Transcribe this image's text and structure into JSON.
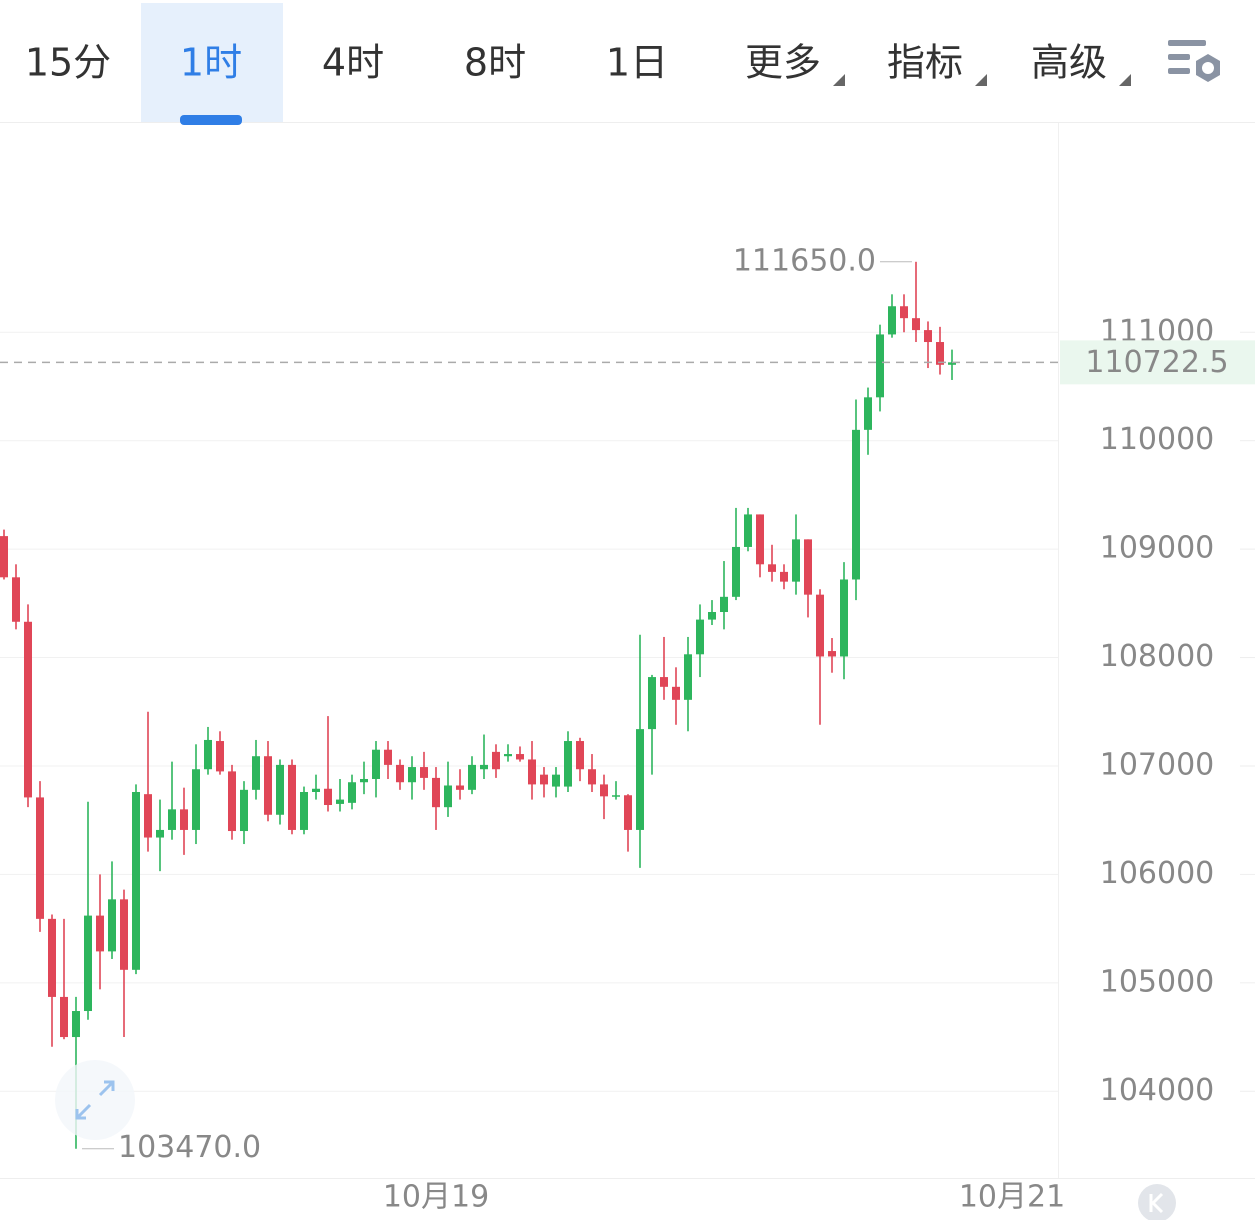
{
  "tabs": {
    "items": [
      "15分",
      "1时",
      "4时",
      "8时",
      "1日",
      "更多",
      "指标",
      "高级"
    ],
    "active": 1
  },
  "chart_data": {
    "type": "candlestick",
    "up_color": "#2db55d",
    "down_color": "#e04657",
    "ylim": [
      103200,
      112930
    ],
    "yticks": [
      104000,
      105000,
      106000,
      107000,
      108000,
      109000,
      110000,
      111000
    ],
    "grid": true,
    "xticks": [
      {
        "value": 36,
        "label": "10月19"
      },
      {
        "value": 84,
        "label": "10月21"
      }
    ],
    "high_label": {
      "value": 111650,
      "label": "111650.0"
    },
    "low_label": {
      "value": 103470,
      "label": "103470.0"
    },
    "last_price": {
      "value": 110722.5,
      "label": "110722.5"
    },
    "ohlc": [
      [
        109120,
        109180,
        108720,
        108740
      ],
      [
        108740,
        108860,
        108260,
        108330
      ],
      [
        108330,
        108490,
        106620,
        106710
      ],
      [
        106710,
        106860,
        105470,
        105590
      ],
      [
        105590,
        105630,
        104410,
        104870
      ],
      [
        104870,
        105590,
        104480,
        104500
      ],
      [
        104500,
        104870,
        103470,
        104740
      ],
      [
        104740,
        106670,
        104660,
        105620
      ],
      [
        105620,
        106000,
        104940,
        105290
      ],
      [
        105290,
        106120,
        105220,
        105770
      ],
      [
        105770,
        105860,
        104500,
        105120
      ],
      [
        105120,
        106830,
        105080,
        106760
      ],
      [
        106740,
        107500,
        106210,
        106340
      ],
      [
        106340,
        106690,
        106030,
        106410
      ],
      [
        106410,
        107040,
        106320,
        106600
      ],
      [
        106600,
        106800,
        106180,
        106410
      ],
      [
        106410,
        107200,
        106280,
        106970
      ],
      [
        106970,
        107360,
        106920,
        107240
      ],
      [
        107230,
        107320,
        106920,
        106950
      ],
      [
        106950,
        107010,
        106320,
        106400
      ],
      [
        106400,
        106860,
        106280,
        106780
      ],
      [
        106780,
        107240,
        106690,
        107090
      ],
      [
        107090,
        107230,
        106490,
        106550
      ],
      [
        106550,
        107060,
        106460,
        107010
      ],
      [
        107010,
        107060,
        106370,
        106410
      ],
      [
        106410,
        106810,
        106370,
        106760
      ],
      [
        106760,
        106920,
        106690,
        106790
      ],
      [
        106790,
        107460,
        106580,
        106640
      ],
      [
        106650,
        106880,
        106580,
        106690
      ],
      [
        106660,
        106920,
        106600,
        106850
      ],
      [
        106850,
        107040,
        106740,
        106880
      ],
      [
        106880,
        107230,
        106710,
        107150
      ],
      [
        107150,
        107230,
        106880,
        107010
      ],
      [
        107010,
        107060,
        106780,
        106850
      ],
      [
        106850,
        107090,
        106690,
        106990
      ],
      [
        106990,
        107130,
        106780,
        106890
      ],
      [
        106890,
        106990,
        106410,
        106620
      ],
      [
        106620,
        107040,
        106530,
        106820
      ],
      [
        106820,
        106970,
        106690,
        106780
      ],
      [
        106780,
        107090,
        106740,
        107010
      ],
      [
        106970,
        107290,
        106880,
        107010
      ],
      [
        107130,
        107200,
        106890,
        106970
      ],
      [
        107090,
        107200,
        107040,
        107110
      ],
      [
        107110,
        107180,
        107040,
        107060
      ],
      [
        107060,
        107230,
        106690,
        106830
      ],
      [
        106920,
        106990,
        106710,
        106830
      ],
      [
        106810,
        106990,
        106710,
        106920
      ],
      [
        106810,
        107320,
        106760,
        107230
      ],
      [
        107230,
        107260,
        106860,
        106970
      ],
      [
        106970,
        107110,
        106760,
        106830
      ],
      [
        106830,
        106920,
        106510,
        106720
      ],
      [
        106720,
        106860,
        106690,
        106730
      ],
      [
        106730,
        106740,
        106210,
        106410
      ],
      [
        106410,
        108210,
        106060,
        107340
      ],
      [
        107340,
        107840,
        106920,
        107820
      ],
      [
        107820,
        108190,
        107610,
        107730
      ],
      [
        107730,
        107910,
        107380,
        107610
      ],
      [
        107610,
        108190,
        107320,
        108030
      ],
      [
        108030,
        108490,
        107820,
        108350
      ],
      [
        108350,
        108530,
        108300,
        108420
      ],
      [
        108420,
        108890,
        108260,
        108560
      ],
      [
        108560,
        109380,
        108530,
        109020
      ],
      [
        109020,
        109380,
        108980,
        109320
      ],
      [
        109320,
        109320,
        108740,
        108860
      ],
      [
        108860,
        109040,
        108700,
        108790
      ],
      [
        108790,
        108860,
        108630,
        108700
      ],
      [
        108700,
        109320,
        108580,
        109090
      ],
      [
        109090,
        109090,
        108370,
        108580
      ],
      [
        108580,
        108630,
        107380,
        108010
      ],
      [
        108060,
        108180,
        107860,
        108010
      ],
      [
        108010,
        108880,
        107800,
        108720
      ],
      [
        108720,
        110380,
        108530,
        110100
      ],
      [
        110100,
        110490,
        109870,
        110400
      ],
      [
        110400,
        111070,
        110270,
        110980
      ],
      [
        110980,
        111350,
        110950,
        111240
      ],
      [
        111240,
        111350,
        111000,
        111130
      ],
      [
        111130,
        111650,
        110910,
        111020
      ],
      [
        111020,
        111100,
        110670,
        110910
      ],
      [
        110910,
        111050,
        110610,
        110700
      ],
      [
        110700,
        110840,
        110560,
        110722.5
      ]
    ]
  }
}
